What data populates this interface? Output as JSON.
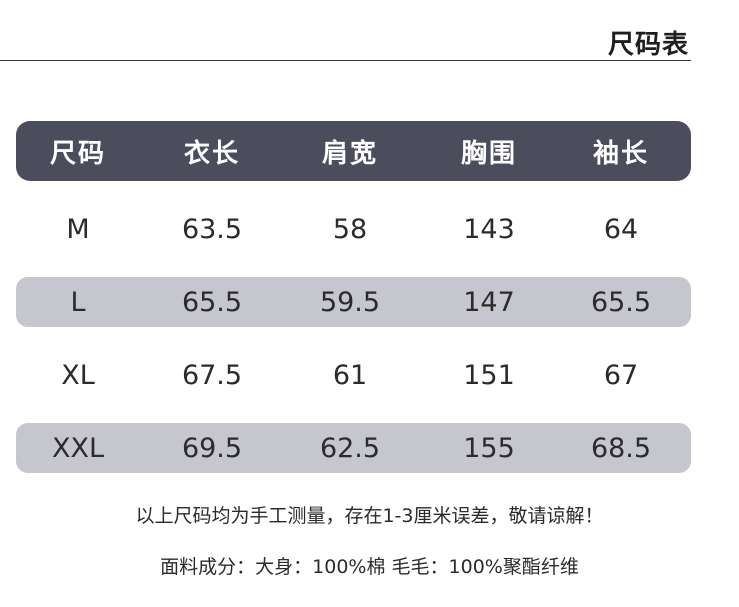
{
  "title": "尺码表",
  "table": {
    "headers": [
      "尺码",
      "衣长",
      "肩宽",
      "胸围",
      "袖长"
    ],
    "rows": [
      [
        "M",
        "63.5",
        "58",
        "143",
        "64"
      ],
      [
        "L",
        "65.5",
        "59.5",
        "147",
        "65.5"
      ],
      [
        "XL",
        "67.5",
        "61",
        "151",
        "67"
      ],
      [
        "XXL",
        "69.5",
        "62.5",
        "155",
        "68.5"
      ]
    ]
  },
  "notes": {
    "measurement": "以上尺码均为手工测量，存在1-3厘米误差，敬请谅解！",
    "material": "面料成分：大身：100%棉 毛毛：100%聚酯纤维"
  },
  "colors": {
    "header_bg": "#4b4d5c",
    "stripe_bg": "#c5c6ce"
  }
}
